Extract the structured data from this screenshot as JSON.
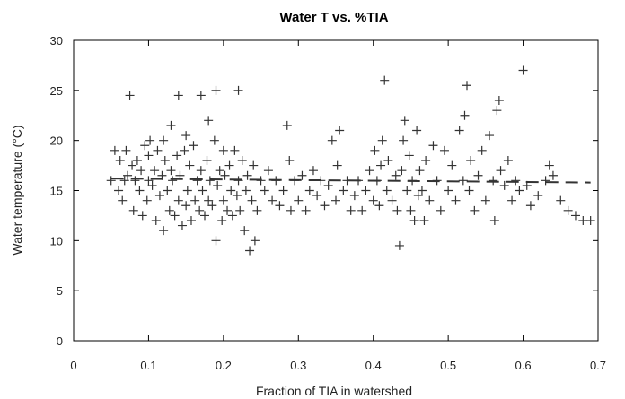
{
  "chart_data": {
    "type": "scatter",
    "title": "Water T vs. %TIA",
    "xlabel": "Fraction of TIA in watershed",
    "ylabel": "Water temperature (°C)",
    "xlim": [
      0,
      0.7
    ],
    "ylim": [
      0,
      30
    ],
    "xticks": [
      "0",
      "0.1",
      "0.2",
      "0.3",
      "0.4",
      "0.5",
      "0.6",
      "0.7"
    ],
    "yticks": [
      "0",
      "5",
      "10",
      "15",
      "20",
      "25",
      "30"
    ],
    "grid": false,
    "marker": "plus",
    "marker_color": "#333333",
    "trend_line": {
      "style": "dashed",
      "color": "#333333",
      "x": [
        0.05,
        0.69
      ],
      "y": [
        16.2,
        15.8
      ]
    },
    "series": [
      {
        "points": [
          [
            0.05,
            16
          ],
          [
            0.055,
            19
          ],
          [
            0.06,
            15
          ],
          [
            0.062,
            18
          ],
          [
            0.065,
            14
          ],
          [
            0.068,
            16
          ],
          [
            0.07,
            19
          ],
          [
            0.072,
            16.5
          ],
          [
            0.075,
            24.5
          ],
          [
            0.078,
            17.5
          ],
          [
            0.08,
            13
          ],
          [
            0.082,
            16
          ],
          [
            0.085,
            18
          ],
          [
            0.088,
            15
          ],
          [
            0.09,
            17
          ],
          [
            0.092,
            12.5
          ],
          [
            0.095,
            19.5
          ],
          [
            0.098,
            14
          ],
          [
            0.1,
            16
          ],
          [
            0.1,
            18.5
          ],
          [
            0.102,
            20
          ],
          [
            0.105,
            15.5
          ],
          [
            0.108,
            17
          ],
          [
            0.11,
            12
          ],
          [
            0.112,
            19
          ],
          [
            0.115,
            14.5
          ],
          [
            0.118,
            16.5
          ],
          [
            0.12,
            11
          ],
          [
            0.12,
            20
          ],
          [
            0.122,
            18
          ],
          [
            0.125,
            15
          ],
          [
            0.128,
            13
          ],
          [
            0.13,
            17
          ],
          [
            0.13,
            21.5
          ],
          [
            0.132,
            16
          ],
          [
            0.135,
            12.5
          ],
          [
            0.138,
            18.5
          ],
          [
            0.14,
            14
          ],
          [
            0.14,
            24.5
          ],
          [
            0.142,
            16.5
          ],
          [
            0.145,
            11.5
          ],
          [
            0.148,
            19
          ],
          [
            0.15,
            13.5
          ],
          [
            0.15,
            20.5
          ],
          [
            0.152,
            15
          ],
          [
            0.155,
            17.5
          ],
          [
            0.157,
            12
          ],
          [
            0.16,
            19.5
          ],
          [
            0.162,
            14
          ],
          [
            0.165,
            16
          ],
          [
            0.168,
            13
          ],
          [
            0.17,
            17
          ],
          [
            0.17,
            24.5
          ],
          [
            0.172,
            15
          ],
          [
            0.175,
            12.5
          ],
          [
            0.178,
            18
          ],
          [
            0.18,
            14
          ],
          [
            0.18,
            22
          ],
          [
            0.182,
            16
          ],
          [
            0.185,
            13.5
          ],
          [
            0.188,
            20
          ],
          [
            0.19,
            10
          ],
          [
            0.19,
            25
          ],
          [
            0.192,
            15.5
          ],
          [
            0.195,
            17
          ],
          [
            0.198,
            12
          ],
          [
            0.2,
            14
          ],
          [
            0.2,
            19
          ],
          [
            0.202,
            16.5
          ],
          [
            0.205,
            13
          ],
          [
            0.208,
            17.5
          ],
          [
            0.21,
            15
          ],
          [
            0.212,
            12.5
          ],
          [
            0.215,
            19
          ],
          [
            0.218,
            14.5
          ],
          [
            0.22,
            16
          ],
          [
            0.22,
            25
          ],
          [
            0.222,
            13
          ],
          [
            0.225,
            18
          ],
          [
            0.228,
            11
          ],
          [
            0.23,
            15
          ],
          [
            0.232,
            16.5
          ],
          [
            0.235,
            9
          ],
          [
            0.238,
            14
          ],
          [
            0.24,
            17.5
          ],
          [
            0.242,
            10
          ],
          [
            0.245,
            13
          ],
          [
            0.25,
            16
          ],
          [
            0.255,
            15
          ],
          [
            0.26,
            17
          ],
          [
            0.265,
            14
          ],
          [
            0.27,
            16
          ],
          [
            0.275,
            13.5
          ],
          [
            0.28,
            15
          ],
          [
            0.285,
            21.5
          ],
          [
            0.288,
            18
          ],
          [
            0.29,
            13
          ],
          [
            0.295,
            16
          ],
          [
            0.3,
            14
          ],
          [
            0.305,
            16.5
          ],
          [
            0.31,
            13
          ],
          [
            0.315,
            15
          ],
          [
            0.32,
            17
          ],
          [
            0.325,
            14.5
          ],
          [
            0.33,
            16
          ],
          [
            0.335,
            13.5
          ],
          [
            0.34,
            15.5
          ],
          [
            0.345,
            20
          ],
          [
            0.35,
            14
          ],
          [
            0.352,
            17.5
          ],
          [
            0.355,
            21
          ],
          [
            0.36,
            15
          ],
          [
            0.365,
            16
          ],
          [
            0.37,
            13
          ],
          [
            0.375,
            14.5
          ],
          [
            0.38,
            16
          ],
          [
            0.385,
            13
          ],
          [
            0.39,
            15
          ],
          [
            0.395,
            17
          ],
          [
            0.4,
            14
          ],
          [
            0.402,
            19
          ],
          [
            0.405,
            16
          ],
          [
            0.408,
            13.5
          ],
          [
            0.41,
            17.5
          ],
          [
            0.412,
            20
          ],
          [
            0.415,
            26
          ],
          [
            0.418,
            15
          ],
          [
            0.42,
            18
          ],
          [
            0.425,
            14
          ],
          [
            0.43,
            16.5
          ],
          [
            0.432,
            13
          ],
          [
            0.435,
            9.5
          ],
          [
            0.438,
            17
          ],
          [
            0.44,
            20
          ],
          [
            0.442,
            22
          ],
          [
            0.445,
            15
          ],
          [
            0.448,
            18.5
          ],
          [
            0.45,
            13
          ],
          [
            0.452,
            16
          ],
          [
            0.455,
            12
          ],
          [
            0.458,
            21
          ],
          [
            0.46,
            14.5
          ],
          [
            0.462,
            17
          ],
          [
            0.465,
            15
          ],
          [
            0.468,
            12
          ],
          [
            0.47,
            18
          ],
          [
            0.475,
            14
          ],
          [
            0.48,
            19.5
          ],
          [
            0.485,
            16
          ],
          [
            0.49,
            13
          ],
          [
            0.495,
            19
          ],
          [
            0.5,
            15
          ],
          [
            0.505,
            17.5
          ],
          [
            0.51,
            14
          ],
          [
            0.515,
            21
          ],
          [
            0.52,
            16
          ],
          [
            0.522,
            22.5
          ],
          [
            0.525,
            25.5
          ],
          [
            0.528,
            15
          ],
          [
            0.53,
            18
          ],
          [
            0.535,
            13
          ],
          [
            0.54,
            16.5
          ],
          [
            0.545,
            19
          ],
          [
            0.55,
            14
          ],
          [
            0.555,
            20.5
          ],
          [
            0.56,
            16
          ],
          [
            0.562,
            12
          ],
          [
            0.565,
            23
          ],
          [
            0.568,
            24
          ],
          [
            0.57,
            17
          ],
          [
            0.575,
            15.5
          ],
          [
            0.58,
            18
          ],
          [
            0.585,
            14
          ],
          [
            0.59,
            16
          ],
          [
            0.595,
            15
          ],
          [
            0.6,
            27
          ],
          [
            0.605,
            15.5
          ],
          [
            0.61,
            13.5
          ],
          [
            0.62,
            14.5
          ],
          [
            0.63,
            16
          ],
          [
            0.635,
            17.5
          ],
          [
            0.64,
            16.5
          ],
          [
            0.65,
            14
          ],
          [
            0.66,
            13
          ],
          [
            0.67,
            12.5
          ],
          [
            0.68,
            12
          ],
          [
            0.69,
            12
          ]
        ]
      }
    ]
  }
}
